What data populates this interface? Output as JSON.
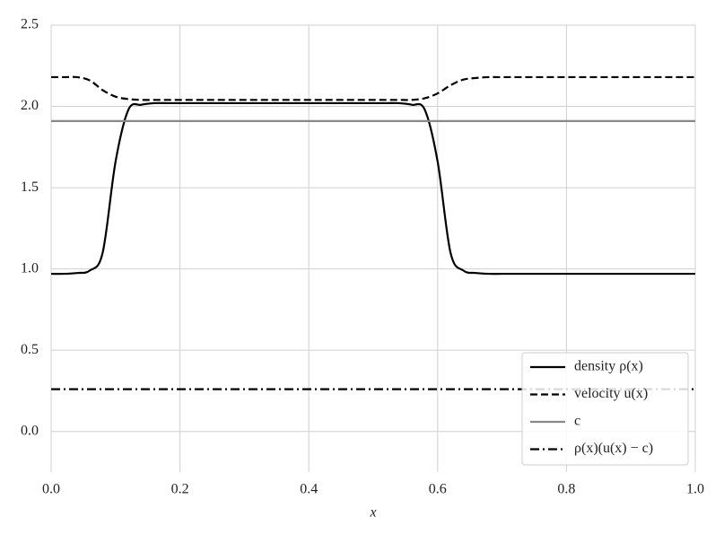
{
  "chart_data": {
    "type": "line",
    "x_label": "x",
    "x": [
      0,
      0.02,
      0.04,
      0.06,
      0.08,
      0.1,
      0.12,
      0.14,
      0.16,
      0.18,
      0.2,
      0.22,
      0.24,
      0.26,
      0.28,
      0.3,
      0.32,
      0.34,
      0.36,
      0.38,
      0.4,
      0.42,
      0.44,
      0.46,
      0.48,
      0.5,
      0.52,
      0.54,
      0.56,
      0.58,
      0.6,
      0.62,
      0.64,
      0.66,
      0.68,
      0.7,
      0.72,
      0.74,
      0.76,
      0.78,
      0.8,
      0.82,
      0.84,
      0.86,
      0.88,
      0.9,
      0.92,
      0.94,
      0.96,
      0.98,
      1
    ],
    "series": [
      {
        "name": "density ρ(x)",
        "color": "#000000",
        "linestyle": "solid",
        "values": [
          0.97,
          0.97,
          0.975,
          0.99,
          1.1,
          1.66,
          1.98,
          2.01,
          2.02,
          2.02,
          2.02,
          2.02,
          2.02,
          2.02,
          2.02,
          2.02,
          2.02,
          2.02,
          2.02,
          2.02,
          2.02,
          2.02,
          2.02,
          2.02,
          2.02,
          2.02,
          2.02,
          2.02,
          2.01,
          1.98,
          1.66,
          1.1,
          0.99,
          0.975,
          0.97,
          0.97,
          0.97,
          0.97,
          0.97,
          0.97,
          0.97,
          0.97,
          0.97,
          0.97,
          0.97,
          0.97,
          0.97,
          0.97,
          0.97,
          0.97,
          0.97
        ]
      },
      {
        "name": "velocity u(x)",
        "color": "#000000",
        "linestyle": "dashed",
        "values": [
          2.18,
          2.18,
          2.18,
          2.16,
          2.1,
          2.06,
          2.045,
          2.04,
          2.04,
          2.04,
          2.04,
          2.04,
          2.04,
          2.04,
          2.04,
          2.04,
          2.04,
          2.04,
          2.04,
          2.04,
          2.04,
          2.04,
          2.04,
          2.04,
          2.04,
          2.04,
          2.04,
          2.04,
          2.04,
          2.05,
          2.08,
          2.13,
          2.165,
          2.175,
          2.18,
          2.18,
          2.18,
          2.18,
          2.18,
          2.18,
          2.18,
          2.18,
          2.18,
          2.18,
          2.18,
          2.18,
          2.18,
          2.18,
          2.18,
          2.18,
          2.18
        ]
      },
      {
        "name": "c",
        "color": "#888888",
        "linestyle": "solid",
        "values": [
          1.91,
          1.91,
          1.91,
          1.91,
          1.91,
          1.91,
          1.91,
          1.91,
          1.91,
          1.91,
          1.91,
          1.91,
          1.91,
          1.91,
          1.91,
          1.91,
          1.91,
          1.91,
          1.91,
          1.91,
          1.91,
          1.91,
          1.91,
          1.91,
          1.91,
          1.91,
          1.91,
          1.91,
          1.91,
          1.91,
          1.91,
          1.91,
          1.91,
          1.91,
          1.91,
          1.91,
          1.91,
          1.91,
          1.91,
          1.91,
          1.91,
          1.91,
          1.91,
          1.91,
          1.91,
          1.91,
          1.91,
          1.91,
          1.91,
          1.91,
          1.91
        ]
      },
      {
        "name": "ρ(x)(u(x) − c)",
        "color": "#000000",
        "linestyle": "dashdot",
        "values": [
          0.26,
          0.26,
          0.26,
          0.26,
          0.26,
          0.26,
          0.26,
          0.26,
          0.26,
          0.26,
          0.26,
          0.26,
          0.26,
          0.26,
          0.26,
          0.26,
          0.26,
          0.26,
          0.26,
          0.26,
          0.26,
          0.26,
          0.26,
          0.26,
          0.26,
          0.26,
          0.26,
          0.26,
          0.26,
          0.26,
          0.26,
          0.26,
          0.26,
          0.26,
          0.26,
          0.26,
          0.26,
          0.26,
          0.26,
          0.26,
          0.26,
          0.26,
          0.26,
          0.26,
          0.26,
          0.26,
          0.26,
          0.26,
          0.26,
          0.26,
          0.26
        ]
      }
    ],
    "xlim": [
      0,
      1
    ],
    "xticks": [
      {
        "value": 0,
        "label": "0.0"
      },
      0.2,
      0.4,
      0.6,
      0.8,
      {
        "value": 1,
        "label": "1.0"
      }
    ],
    "ylim": [
      -0.25,
      2.5
    ],
    "yticks": [
      {
        "value": 0,
        "label": "0.0"
      },
      0.5,
      {
        "value": 1,
        "label": "1.0"
      },
      1.5,
      {
        "value": 2,
        "label": "2.0"
      },
      2.5
    ],
    "grid": true,
    "legend": "lower right"
  }
}
